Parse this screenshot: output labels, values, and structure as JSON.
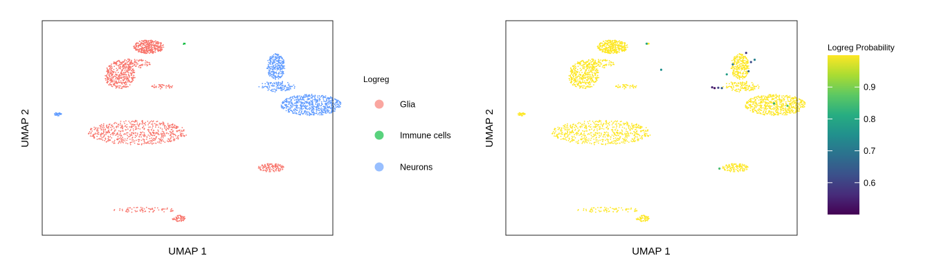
{
  "chart_data": [
    {
      "type": "scatter",
      "xlabel": "UMAP 1",
      "ylabel": "UMAP 2",
      "legend": {
        "title": "Logreg",
        "placement": "right",
        "entries": [
          {
            "label": "Glia",
            "color": "#F8766D"
          },
          {
            "label": "Immune cells",
            "color": "#00BA38"
          },
          {
            "label": "Neurons",
            "color": "#619CFF"
          }
        ]
      },
      "clusters": [
        {
          "label": "Glia",
          "color": "#F8766D",
          "cx": -3.2,
          "cy": 8.6,
          "rx": 1.25,
          "ry": 0.9,
          "n": 360
        },
        {
          "label": "Glia",
          "color": "#F8766D",
          "cx": -5.6,
          "cy": 4.9,
          "rx": 1.3,
          "ry": 1.8,
          "n": 380
        },
        {
          "label": "Glia",
          "color": "#F8766D",
          "cx": -4.6,
          "cy": 6.4,
          "rx": 1.6,
          "ry": 0.6,
          "n": 120
        },
        {
          "label": "Glia",
          "color": "#F8766D",
          "cx": -2.1,
          "cy": 3.4,
          "rx": 0.9,
          "ry": 0.3,
          "n": 40
        },
        {
          "label": "Glia",
          "color": "#F8766D",
          "cx": -4.1,
          "cy": -2.6,
          "rx": 4.1,
          "ry": 1.6,
          "n": 600
        },
        {
          "label": "Glia",
          "color": "#F8766D",
          "cx": 6.9,
          "cy": -7.2,
          "rx": 1.1,
          "ry": 0.55,
          "n": 120
        },
        {
          "label": "Glia",
          "color": "#F8766D",
          "cx": -3.5,
          "cy": -12.7,
          "rx": 2.6,
          "ry": 0.35,
          "n": 70
        },
        {
          "label": "Glia",
          "color": "#F8766D",
          "cx": -0.7,
          "cy": -13.8,
          "rx": 0.55,
          "ry": 0.4,
          "n": 60
        },
        {
          "label": "Immune cells",
          "color": "#00BA38",
          "cx": -0.3,
          "cy": 9.0,
          "rx": 0.12,
          "ry": 0.12,
          "n": 6
        },
        {
          "label": "Neurons",
          "color": "#619CFF",
          "cx": 7.3,
          "cy": 6.0,
          "rx": 0.75,
          "ry": 1.7,
          "n": 280
        },
        {
          "label": "Neurons",
          "color": "#619CFF",
          "cx": 7.4,
          "cy": 3.4,
          "rx": 1.5,
          "ry": 0.7,
          "n": 120
        },
        {
          "label": "Neurons",
          "color": "#619CFF",
          "cx": 10.2,
          "cy": 1.0,
          "rx": 2.5,
          "ry": 1.4,
          "n": 600
        },
        {
          "label": "Neurons",
          "color": "#619CFF",
          "cx": -10.7,
          "cy": -0.2,
          "rx": 0.3,
          "ry": 0.22,
          "n": 40
        }
      ],
      "xlim": [
        -12,
        12
      ],
      "ylim": [
        -16,
        12
      ]
    },
    {
      "type": "scatter",
      "xlabel": "UMAP 1",
      "ylabel": "UMAP 2",
      "colorbar": {
        "title": "Logreg Probability",
        "ticks": [
          0.6,
          0.7,
          0.8,
          0.9
        ],
        "range": [
          0.5,
          1.0
        ],
        "colors": [
          "#440154",
          "#472C7A",
          "#3B518B",
          "#2C718E",
          "#21908D",
          "#27AD81",
          "#5CC863",
          "#AADC32",
          "#FDE725"
        ]
      },
      "low_probability_points": [
        {
          "x": 5.0,
          "y": 3.3,
          "p": 0.55
        },
        {
          "x": 5.2,
          "y": 3.2,
          "p": 0.52
        },
        {
          "x": 5.5,
          "y": 3.25,
          "p": 0.6
        },
        {
          "x": 5.8,
          "y": 3.2,
          "p": 0.65
        },
        {
          "x": 7.8,
          "y": 7.8,
          "p": 0.58
        },
        {
          "x": 8.2,
          "y": 6.6,
          "p": 0.62
        },
        {
          "x": 8.0,
          "y": 5.4,
          "p": 0.66
        },
        {
          "x": 6.7,
          "y": 6.3,
          "p": 0.7
        },
        {
          "x": 8.5,
          "y": 6.9,
          "p": 0.72
        },
        {
          "x": 6.2,
          "y": 5.0,
          "p": 0.78
        },
        {
          "x": 10.1,
          "y": 1.2,
          "p": 0.82
        },
        {
          "x": 11.2,
          "y": 0.9,
          "p": 0.86
        },
        {
          "x": 0.8,
          "y": 5.6,
          "p": 0.75
        },
        {
          "x": -0.4,
          "y": 9.0,
          "p": 0.8
        },
        {
          "x": 5.6,
          "y": -7.3,
          "p": 0.85
        }
      ],
      "xlim": [
        -12,
        12
      ],
      "ylim": [
        -16,
        12
      ]
    }
  ]
}
